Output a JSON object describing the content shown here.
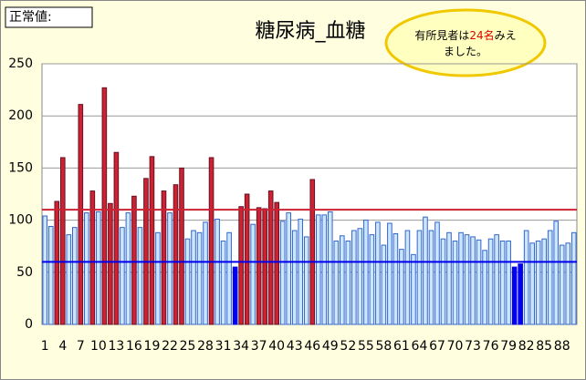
{
  "chart_data": {
    "type": "bar",
    "title": "糖尿病_血糖",
    "label": "正常値:",
    "annotation": [
      "有所見者は",
      "24名",
      "みえ",
      "ました。"
    ],
    "categories": [
      1,
      null,
      null,
      4,
      null,
      null,
      7,
      null,
      null,
      10,
      null,
      null,
      13,
      null,
      null,
      16,
      null,
      null,
      19,
      null,
      null,
      22,
      null,
      null,
      25,
      null,
      null,
      28,
      null,
      null,
      31,
      null,
      null,
      34,
      null,
      null,
      37,
      null,
      null,
      40,
      null,
      null,
      43,
      null,
      null,
      46,
      null,
      null,
      49,
      null,
      null,
      52,
      null,
      null,
      55,
      null,
      null,
      58,
      null,
      null,
      61,
      null,
      null,
      64,
      null,
      null,
      67,
      null,
      null,
      70,
      null,
      null,
      73,
      null,
      null,
      76,
      null,
      null,
      79,
      null,
      null,
      82,
      null,
      null,
      85,
      null,
      null,
      88,
      null,
      null
    ],
    "values": [
      104,
      94,
      118,
      160,
      86,
      93,
      211,
      107,
      128,
      108,
      227,
      116,
      165,
      93,
      107,
      123,
      93,
      140,
      161,
      88,
      128,
      107,
      134,
      150,
      82,
      90,
      88,
      98,
      160,
      101,
      80,
      88,
      55,
      113,
      125,
      96,
      112,
      111,
      128,
      117,
      99,
      107,
      90,
      101,
      84,
      139,
      105,
      105,
      108,
      80,
      85,
      80,
      90,
      92,
      100,
      86,
      98,
      76,
      97,
      87,
      72,
      90,
      67,
      90,
      103,
      90,
      98,
      82,
      88,
      80,
      88,
      86,
      84,
      81,
      71,
      82,
      86,
      80,
      80,
      55,
      58,
      90,
      78,
      80,
      82,
      90,
      99,
      76,
      78,
      88
    ],
    "color": "#cce6ff",
    "upper_limit": 110,
    "upper_color": "#cc2233",
    "lower_limit": 60,
    "lower_color": "#0000ee",
    "ylim": [
      0,
      250
    ],
    "yticks": [
      0,
      50,
      100,
      150,
      200,
      250
    ],
    "grid": true
  }
}
